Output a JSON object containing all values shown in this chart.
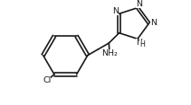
{
  "background_color": "#ffffff",
  "line_color": "#1a1a1a",
  "line_width": 1.2,
  "text_color": "#1a1a1a",
  "font_size": 6.8,
  "fig_width": 2.11,
  "fig_height": 1.17,
  "dpi": 100,
  "xlim": [
    0.0,
    1.05
  ],
  "ylim": [
    0.05,
    1.0
  ]
}
